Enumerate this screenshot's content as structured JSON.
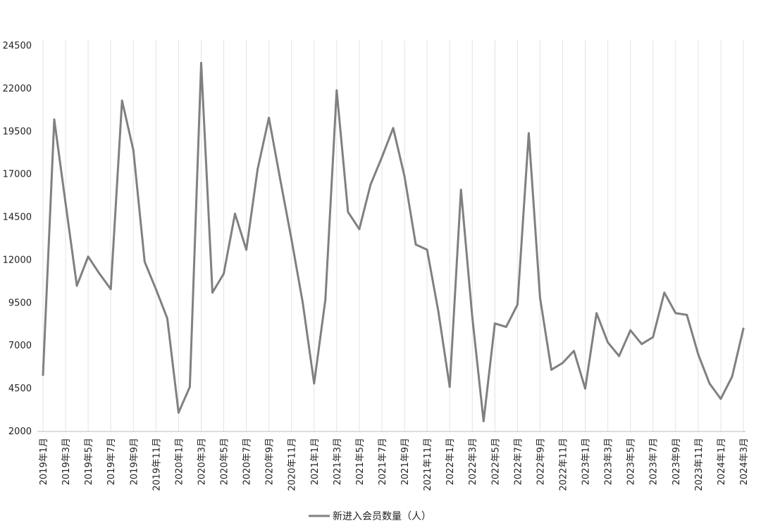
{
  "chart_data": {
    "type": "line",
    "legend_position": "bottom",
    "grid": "vertical",
    "ylim": [
      2000,
      24500
    ],
    "yticks": [
      "2000",
      "4500",
      "7000",
      "9500",
      "12000",
      "14500",
      "17000",
      "19500",
      "22000",
      "24500"
    ],
    "xtick_labels": [
      "2019年1月",
      "2019年3月",
      "2019年5月",
      "2019年7月",
      "2019年9月",
      "2019年11月",
      "2020年1月",
      "2020年3月",
      "2020年5月",
      "2020年7月",
      "2020年9月",
      "2020年11月",
      "2021年1月",
      "2021年3月",
      "2021年5月",
      "2021年7月",
      "2021年9月",
      "2021年11月",
      "2022年1月",
      "2022年3月",
      "2022年5月",
      "2022年7月",
      "2022年9月",
      "2022年11月",
      "2023年1月",
      "2023年3月",
      "2023年5月",
      "2023年7月",
      "2023年9月",
      "2023年11月",
      "2024年1月",
      "2024年3月"
    ],
    "x": [
      "2019年1月",
      "2019年2月",
      "2019年3月",
      "2019年4月",
      "2019年5月",
      "2019年6月",
      "2019年7月",
      "2019年8月",
      "2019年9月",
      "2019年10月",
      "2019年11月",
      "2019年12月",
      "2020年1月",
      "2020年2月",
      "2020年3月",
      "2020年4月",
      "2020年5月",
      "2020年6月",
      "2020年7月",
      "2020年8月",
      "2020年9月",
      "2020年10月",
      "2020年11月",
      "2020年12月",
      "2021年1月",
      "2021年2月",
      "2021年3月",
      "2021年4月",
      "2021年5月",
      "2021年6月",
      "2021年7月",
      "2021年8月",
      "2021年9月",
      "2021年10月",
      "2021年11月",
      "2021年12月",
      "2022年1月",
      "2022年2月",
      "2022年3月",
      "2022年4月",
      "2022年5月",
      "2022年6月",
      "2022年7月",
      "2022年8月",
      "2022年9月",
      "2022年10月",
      "2022年11月",
      "2022年12月",
      "2023年1月",
      "2023年2月",
      "2023年3月",
      "2023年4月",
      "2023年5月",
      "2023年6月",
      "2023年7月",
      "2023年8月",
      "2023年9月",
      "2023年10月",
      "2023年11月",
      "2023年12月",
      "2024年1月",
      "2024年2月",
      "2024年3月"
    ],
    "series": [
      {
        "name": "新进入会员数量（人）",
        "color": "#808080",
        "values": [
          5300,
          20200,
          15300,
          10500,
          12200,
          11200,
          10300,
          21300,
          18400,
          11900,
          10300,
          8600,
          3100,
          4600,
          23500,
          10100,
          11200,
          14700,
          12600,
          17300,
          20300,
          16700,
          13200,
          9500,
          4800,
          9700,
          21900,
          14800,
          13800,
          16400,
          18000,
          19700,
          16900,
          12900,
          12600,
          9000,
          4600,
          16100,
          8700,
          2600,
          8300,
          8100,
          9400,
          19400,
          9800,
          5600,
          6000,
          6700,
          4500,
          8900,
          7200,
          6400,
          7900,
          7100,
          7500,
          10100,
          8900,
          8800,
          6500,
          4800,
          3900,
          5200,
          8000
        ]
      }
    ]
  }
}
